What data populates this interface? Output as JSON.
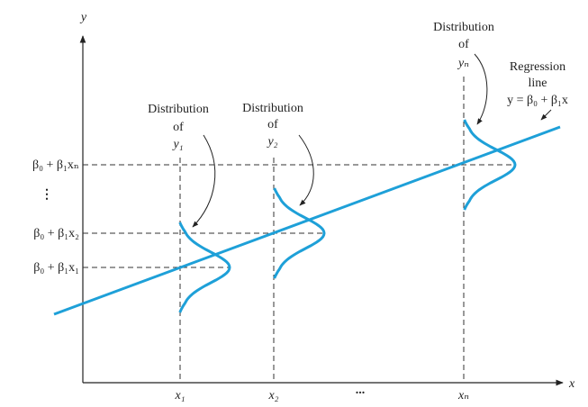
{
  "axes": {
    "y_label": "y",
    "x_label": "x"
  },
  "y_axis_labels": [
    "β₀ + β₁xₙ",
    "⋮",
    "β₀ + β₁x₂",
    "β₀ + β₁x₁"
  ],
  "x_axis_labels": [
    "x₁",
    "x₂",
    "...",
    "xₙ"
  ],
  "distributions": [
    {
      "lines": [
        "Distribution",
        "of",
        "y₁"
      ]
    },
    {
      "lines": [
        "Distribution",
        "of",
        "y₂"
      ]
    },
    {
      "lines": [
        "Distribution",
        "of",
        "yₙ"
      ]
    }
  ],
  "regression_label": {
    "lines": [
      "Regression",
      "line",
      "y = β₀ + β₁x"
    ]
  }
}
